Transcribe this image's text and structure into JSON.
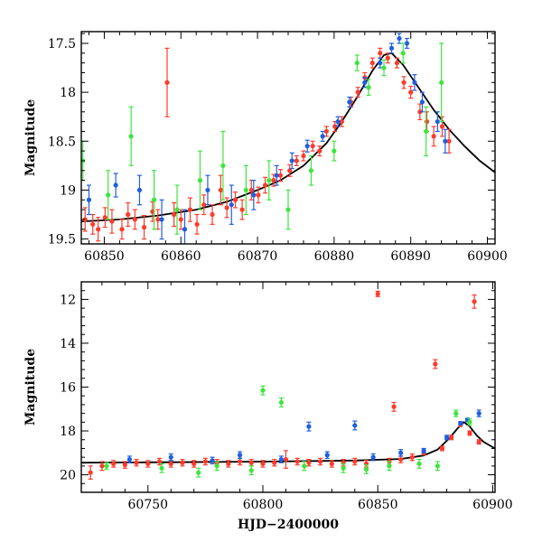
{
  "colors": {
    "series_a": "#ff3a2a",
    "series_b": "#1e5fe0",
    "series_c": "#3ce63c",
    "model": "#000000"
  },
  "chart_data": [
    {
      "type": "scatter",
      "panel": "top",
      "ylabel": "Magnitude",
      "xlabel": "",
      "xlim": [
        60847,
        60901
      ],
      "ylim": [
        19.55,
        17.38
      ],
      "y_inverted": true,
      "x_ticks": [
        60850,
        60860,
        60870,
        60880,
        60890,
        60900
      ],
      "y_ticks": [
        17.5,
        18,
        18.5,
        19,
        19.5
      ],
      "x_tick_labels": [
        "60850",
        "60860",
        "60870",
        "60880",
        "60890",
        "60900"
      ],
      "y_tick_labels": [
        "17.5",
        "18",
        "18.5",
        "19",
        "19.5"
      ],
      "model_curve": {
        "x": [
          60847,
          60852,
          60857,
          60862,
          60866,
          60870,
          60873,
          60876,
          60879,
          60881,
          60883,
          60885,
          60886.5,
          60887.5,
          60889,
          60891,
          60893,
          60895,
          60897,
          60899,
          60901
        ],
        "y": [
          19.32,
          19.3,
          19.26,
          19.2,
          19.12,
          19.0,
          18.9,
          18.75,
          18.52,
          18.3,
          18.05,
          17.78,
          17.62,
          17.6,
          17.72,
          17.95,
          18.18,
          18.38,
          18.55,
          18.7,
          18.82
        ]
      },
      "series": [
        {
          "color_key": "series_a",
          "x": [
            60847.5,
            60848.5,
            60849.2,
            60850.1,
            60851.0,
            60852.3,
            60853.1,
            60854.0,
            60855.2,
            60856.3,
            60857.0,
            60858.2,
            60859.1,
            60860.0,
            60861.2,
            60862.1,
            60863.0,
            60864.1,
            60865.2,
            60866.0,
            60867.1,
            60868.0,
            60869.2,
            60870.1,
            60871.0,
            60872.1,
            60873.0,
            60874.2,
            60875.1,
            60876.0,
            60877.2,
            60878.1,
            60879.0,
            60880.1,
            60881.0,
            60882.2,
            60883.1,
            60884.0,
            60885.0,
            60886.0,
            60887.0,
            60888.2,
            60889.1,
            60890.0,
            60891.2,
            60892.1,
            60893.0,
            60894.1,
            60895.0
          ],
          "y": [
            19.3,
            19.35,
            19.4,
            19.28,
            19.32,
            19.4,
            19.25,
            19.3,
            19.38,
            19.22,
            19.3,
            17.9,
            19.25,
            19.3,
            19.2,
            19.35,
            19.15,
            19.25,
            19.0,
            19.18,
            19.1,
            19.2,
            19.0,
            19.05,
            18.95,
            18.9,
            18.85,
            18.8,
            18.7,
            18.65,
            18.55,
            18.6,
            18.4,
            18.35,
            18.3,
            18.1,
            18.0,
            17.85,
            17.7,
            17.6,
            17.65,
            17.7,
            17.9,
            18.0,
            18.2,
            18.3,
            18.45,
            18.35,
            18.5
          ],
          "err": [
            0.12,
            0.1,
            0.12,
            0.1,
            0.12,
            0.1,
            0.12,
            0.1,
            0.12,
            0.1,
            0.1,
            0.35,
            0.12,
            0.1,
            0.12,
            0.1,
            0.1,
            0.1,
            0.15,
            0.1,
            0.08,
            0.1,
            0.1,
            0.08,
            0.08,
            0.06,
            0.06,
            0.06,
            0.05,
            0.05,
            0.05,
            0.05,
            0.05,
            0.05,
            0.05,
            0.05,
            0.05,
            0.05,
            0.05,
            0.05,
            0.05,
            0.05,
            0.06,
            0.06,
            0.08,
            0.1,
            0.1,
            0.1,
            0.12
          ]
        },
        {
          "color_key": "series_b",
          "x": [
            60848.0,
            60851.5,
            60854.6,
            60857.5,
            60860.5,
            60863.5,
            60866.6,
            60869.5,
            60872.5,
            60874.5,
            60876.5,
            60878.5,
            60880.5,
            60882.0,
            60884.0,
            60886.0,
            60887.5,
            60888.5,
            60889.5,
            60890.5,
            60891.5,
            60893.5,
            60894.5
          ],
          "y": [
            19.1,
            18.95,
            19.0,
            19.3,
            19.4,
            19.0,
            19.15,
            19.05,
            18.85,
            18.7,
            18.55,
            18.45,
            18.3,
            18.1,
            17.9,
            17.7,
            17.55,
            17.45,
            17.5,
            17.9,
            18.1,
            18.3,
            18.5
          ],
          "err": [
            0.15,
            0.12,
            0.15,
            0.2,
            0.2,
            0.15,
            0.2,
            0.15,
            0.1,
            0.08,
            0.06,
            0.05,
            0.05,
            0.05,
            0.05,
            0.05,
            0.05,
            0.05,
            0.05,
            0.08,
            0.1,
            0.1,
            0.12
          ]
        },
        {
          "color_key": "series_c",
          "x": [
            60847.2,
            60850.5,
            60853.5,
            60856.5,
            60859.5,
            60862.5,
            60865.5,
            60868.5,
            60871.5,
            60874.0,
            60877.0,
            60880.0,
            60883.0,
            60884.5,
            60886.5,
            60889.0,
            60892.0,
            60894.0
          ],
          "y": [
            18.7,
            19.05,
            18.45,
            19.1,
            19.2,
            18.9,
            18.75,
            19.0,
            18.9,
            19.2,
            18.8,
            18.6,
            17.7,
            17.95,
            17.75,
            17.6,
            18.4,
            17.9
          ],
          "err": [
            0.2,
            0.25,
            0.3,
            0.3,
            0.25,
            0.3,
            0.35,
            0.25,
            0.2,
            0.2,
            0.15,
            0.1,
            0.08,
            0.08,
            0.08,
            0.1,
            0.25,
            0.4
          ]
        }
      ]
    },
    {
      "type": "scatter",
      "panel": "bottom",
      "ylabel": "Magnitude",
      "xlabel": "HJD−2400000",
      "xlim": [
        60721,
        60901
      ],
      "ylim": [
        20.8,
        11.2
      ],
      "y_inverted": true,
      "x_ticks": [
        60750,
        60800,
        60850,
        60900
      ],
      "y_ticks": [
        12,
        14,
        16,
        18,
        20
      ],
      "x_tick_labels": [
        "60750",
        "60800",
        "60850",
        "60900"
      ],
      "y_tick_labels": [
        "12",
        "14",
        "16",
        "18",
        "20"
      ],
      "model_curve": {
        "x": [
          60721,
          60760,
          60800,
          60840,
          60860,
          60870,
          60876,
          60881,
          60885,
          60887.5,
          60890,
          60893,
          60896,
          60901
        ],
        "y": [
          19.45,
          19.43,
          19.4,
          19.35,
          19.28,
          19.12,
          18.85,
          18.35,
          17.85,
          17.6,
          17.8,
          18.2,
          18.5,
          18.8
        ]
      },
      "series": [
        {
          "color_key": "series_a",
          "x": [
            60725,
            60730,
            60735,
            60740,
            60745,
            60750,
            60755,
            60760,
            60765,
            60770,
            60775,
            60780,
            60785,
            60790,
            60795,
            60800,
            60805,
            60810,
            60815,
            60820,
            60825,
            60830,
            60835,
            60840,
            60845,
            60850,
            60855,
            60857,
            60860,
            60865,
            60870,
            60875,
            60878,
            60882,
            60886,
            60890,
            60892,
            60894
          ],
          "y": [
            19.9,
            19.6,
            19.5,
            19.55,
            19.45,
            19.5,
            19.4,
            19.5,
            19.45,
            19.5,
            19.4,
            19.45,
            19.5,
            19.4,
            19.45,
            19.5,
            19.45,
            19.3,
            19.4,
            19.45,
            19.4,
            19.5,
            19.45,
            19.4,
            19.5,
            11.75,
            19.4,
            16.9,
            19.3,
            19.2,
            19.0,
            14.95,
            18.8,
            18.3,
            17.7,
            18.1,
            12.1,
            18.5
          ],
          "err": [
            0.3,
            0.2,
            0.15,
            0.15,
            0.15,
            0.15,
            0.15,
            0.15,
            0.15,
            0.15,
            0.15,
            0.15,
            0.15,
            0.15,
            0.15,
            0.15,
            0.15,
            0.4,
            0.15,
            0.15,
            0.15,
            0.15,
            0.15,
            0.15,
            0.15,
            0.12,
            0.15,
            0.2,
            0.15,
            0.15,
            0.1,
            0.2,
            0.1,
            0.1,
            0.1,
            0.1,
            0.3,
            0.1
          ]
        },
        {
          "color_key": "series_b",
          "x": [
            60742,
            60760,
            60778,
            60790,
            60808,
            60820,
            60828,
            60840,
            60848,
            60860,
            60870,
            60880,
            60886,
            60889,
            60894
          ],
          "y": [
            19.3,
            19.2,
            19.35,
            19.1,
            19.3,
            17.8,
            19.1,
            17.75,
            19.2,
            19.0,
            18.9,
            18.3,
            17.65,
            17.5,
            17.2
          ],
          "err": [
            0.15,
            0.15,
            0.15,
            0.15,
            0.15,
            0.2,
            0.15,
            0.2,
            0.15,
            0.15,
            0.1,
            0.1,
            0.08,
            0.08,
            0.15
          ]
        },
        {
          "color_key": "series_c",
          "x": [
            60732,
            60756,
            60772,
            60780,
            60795,
            60800,
            60808,
            60818,
            60835,
            60845,
            60855,
            60868,
            60876,
            60884,
            60890
          ],
          "y": [
            19.6,
            19.7,
            19.9,
            19.6,
            19.8,
            16.15,
            16.7,
            19.6,
            19.7,
            19.75,
            19.6,
            19.5,
            19.6,
            17.2,
            17.6
          ],
          "err": [
            0.15,
            0.2,
            0.2,
            0.2,
            0.2,
            0.2,
            0.2,
            0.2,
            0.2,
            0.2,
            0.2,
            0.2,
            0.2,
            0.15,
            0.15
          ]
        }
      ]
    }
  ]
}
